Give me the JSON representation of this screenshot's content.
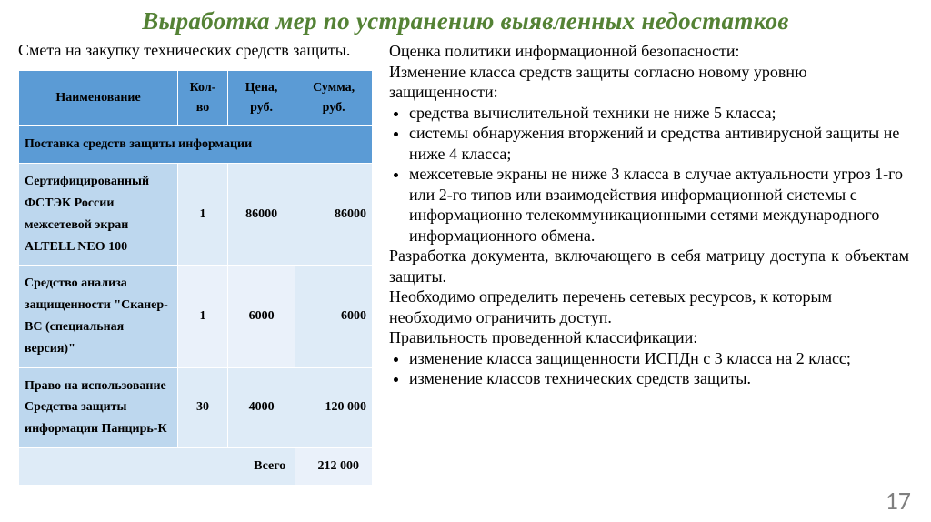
{
  "title": "Выработка мер по устранению выявленных недостатков",
  "pageNumber": "17",
  "left": {
    "caption": "Смета на закупку технических средств защиты.",
    "columns": {
      "name": "Наименование",
      "qty": "Кол-во",
      "price": "Цена, руб.",
      "sum": "Сумма, руб."
    },
    "sectionTitle": "Поставка средств защиты информации",
    "rows": [
      {
        "name": "Сертифицированный ФСТЭК России межсетевой экран ALTELL NEO 100",
        "qty": "1",
        "price": "86000",
        "sum": "86000"
      },
      {
        "name": "Средство анализа защищенности \"Сканер-ВС (специальная версия)\"",
        "qty": "1",
        "price": "6000",
        "sum": "6000"
      },
      {
        "name": "Право на использование Средства защиты информации Панцирь-К",
        "qty": "30",
        "price": "4000",
        "sum": "120 000"
      }
    ],
    "totalLabel": "Всего",
    "totalValue": "212 000"
  },
  "right": {
    "p1": "Оценка политики информационной безопасности:",
    "p2": "Изменение класса средств защиты согласно новому уровню защищенности:",
    "bullets1": [
      "средства вычислительной техники не ниже 5 класса;",
      "системы обнаружения вторжений и средства антивирусной защиты не ниже 4 класса;",
      "межсетевые экраны не ниже 3 класса в случае актуальности угроз 1-го или 2-го типов или взаимодействия информационной системы с информационно телекоммуникационными сетями международного информационного обмена."
    ],
    "p3": "Разработка документа, включающего в себя матрицу доступа к объектам защиты.",
    "p4": "Необходимо определить перечень сетевых ресурсов, к которым необходимо ограничить доступ.",
    "p5": "Правильность проведенной классификации:",
    "bullets2": [
      "изменение класса защищенности ИСПДн  с 3 класса на 2 класс;",
      "изменение классов технических средств защиты."
    ]
  }
}
